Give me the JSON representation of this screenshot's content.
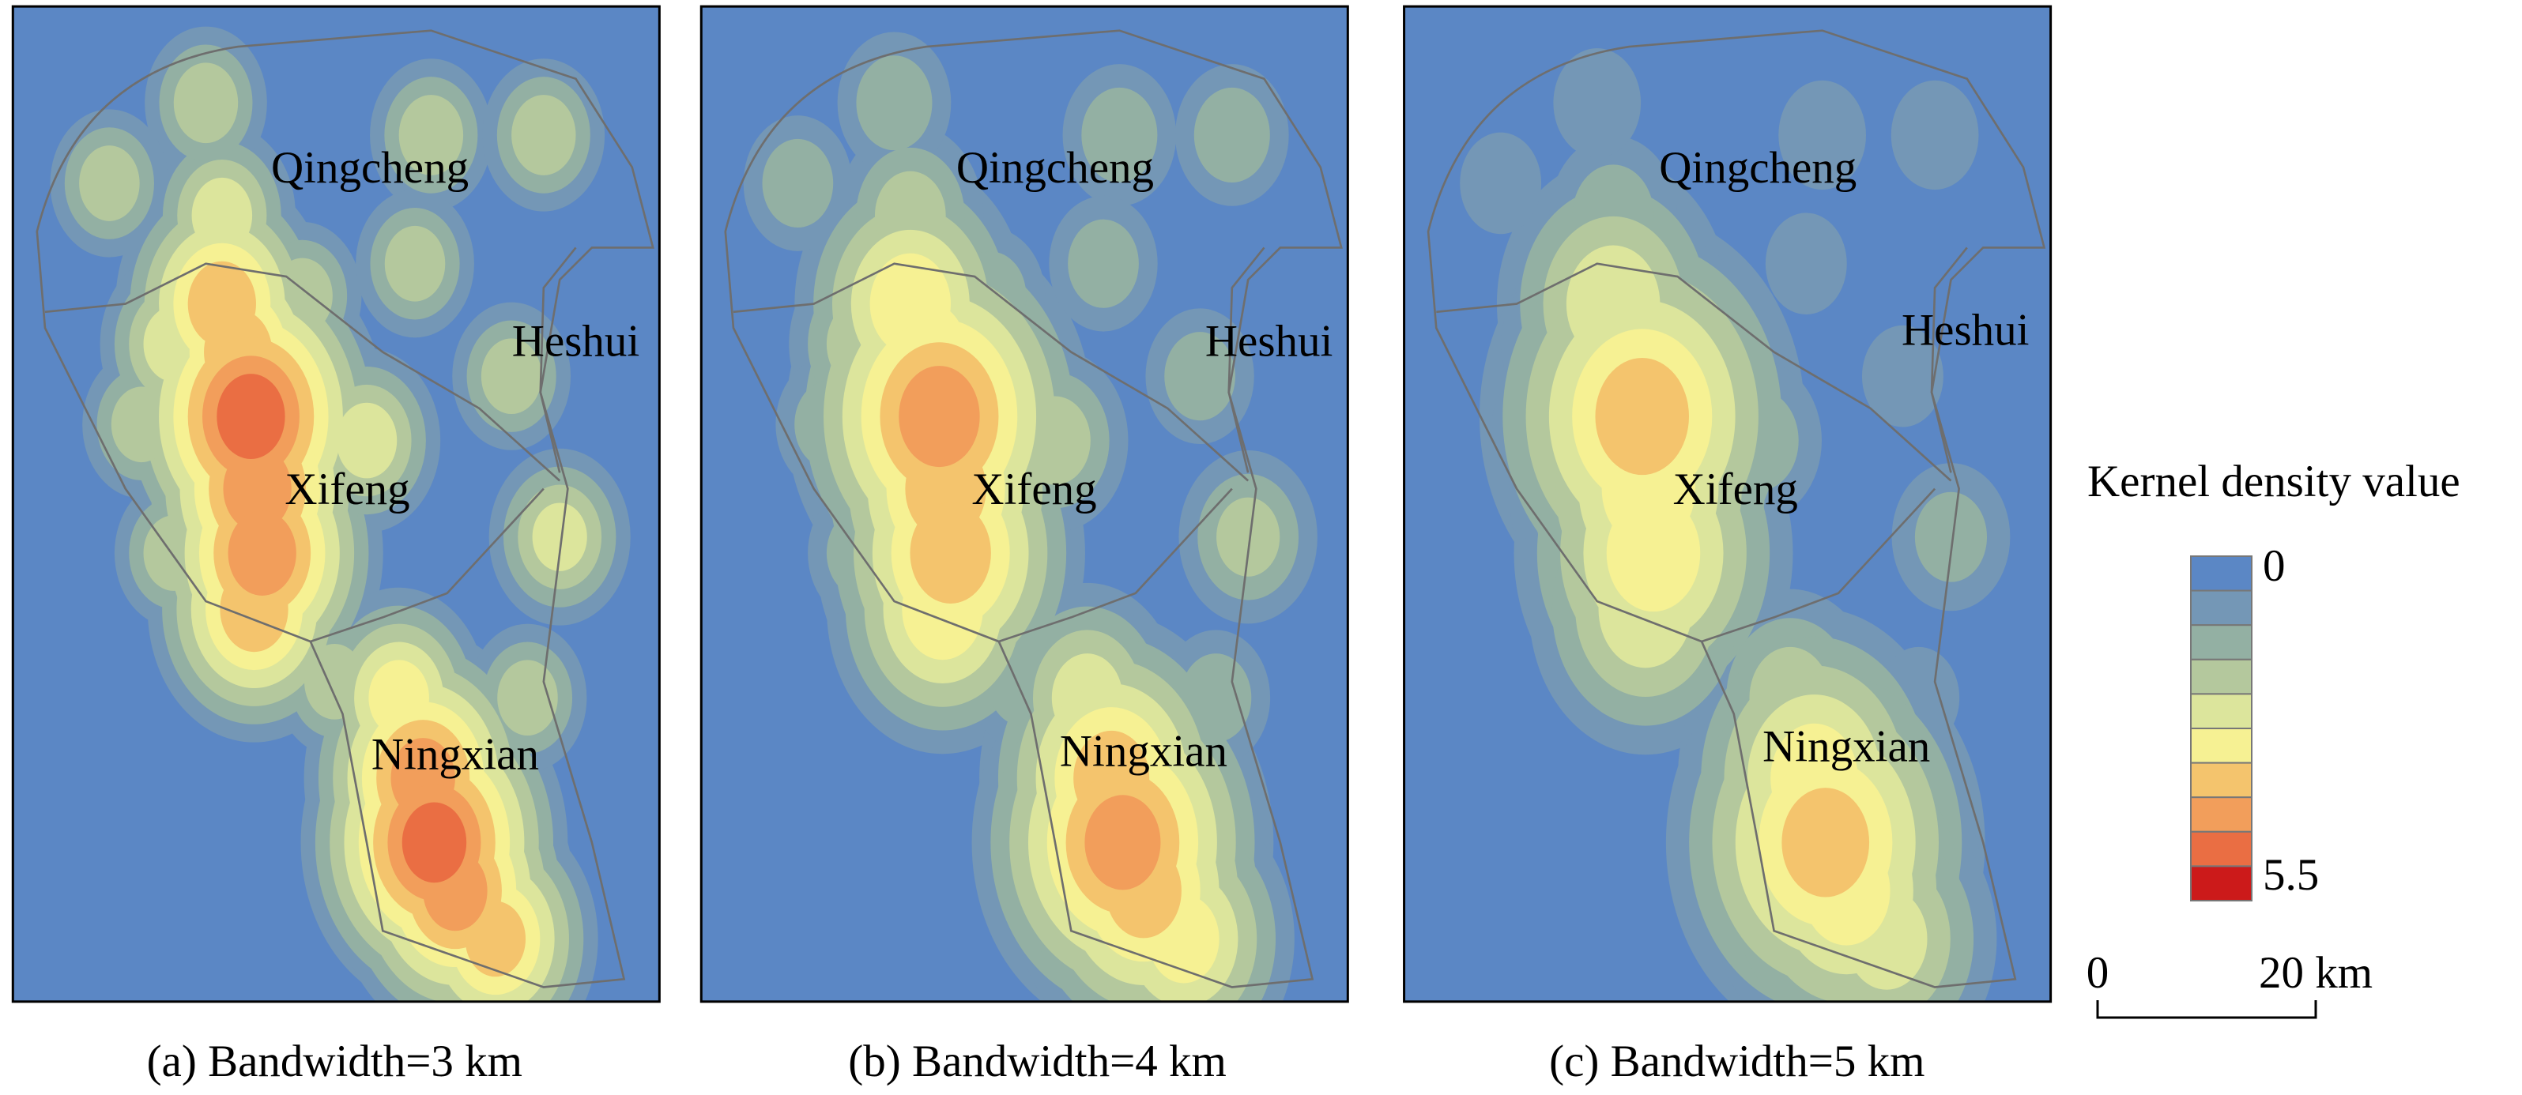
{
  "panels": [
    {
      "caption": "(a) Bandwidth=3 km",
      "regions": [
        "Qingcheng",
        "Heshui",
        "Xifeng",
        "Ningxian"
      ]
    },
    {
      "caption": "(b) Bandwidth=4 km",
      "regions": [
        "Qingcheng",
        "Heshui",
        "Xifeng",
        "Ningxian"
      ]
    },
    {
      "caption": "(c) Bandwidth=5 km",
      "regions": [
        "Qingcheng",
        "Heshui",
        "Xifeng",
        "Ningxian"
      ]
    }
  ],
  "legend": {
    "title": "Kernel density value",
    "min_label": "0",
    "max_label": "5.5",
    "colors": [
      "#5b87c5",
      "#7497b6",
      "#93b0a3",
      "#b4c89d",
      "#dce59c",
      "#f6f193",
      "#f4c46d",
      "#f29e5b",
      "#ea6e43",
      "#cc1a1a"
    ]
  },
  "scalebar": {
    "start": "0",
    "end": "20 km"
  }
}
